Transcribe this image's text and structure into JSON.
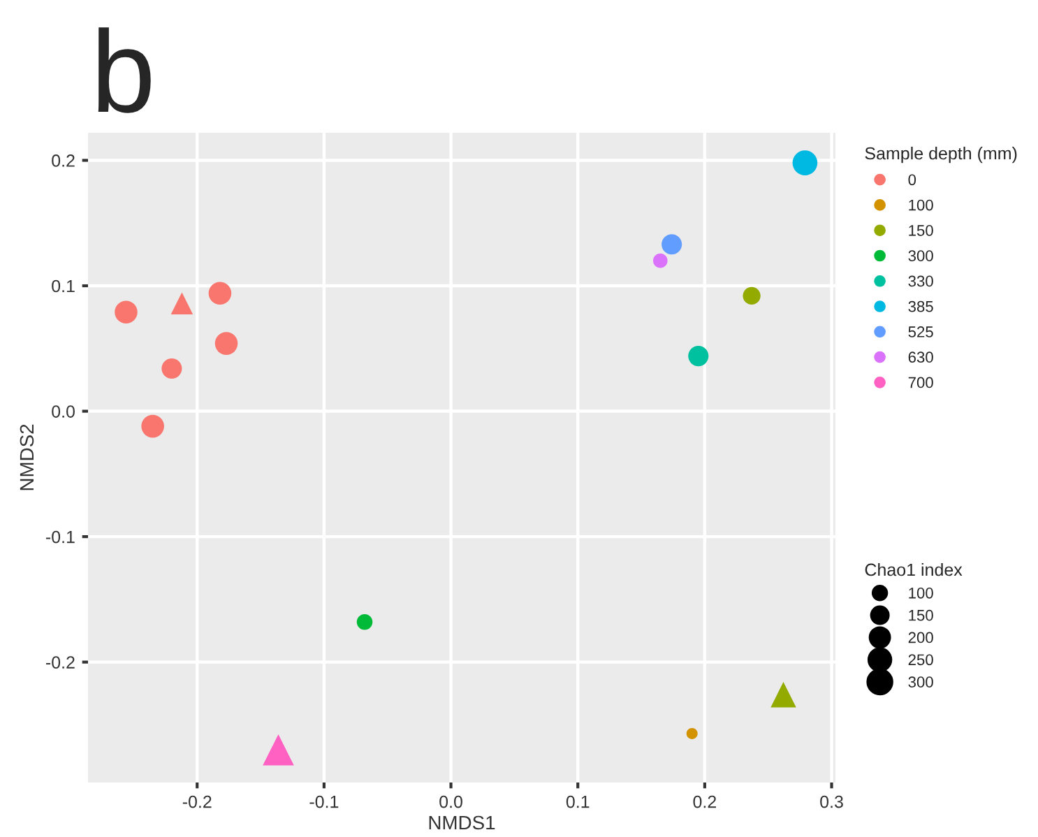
{
  "chart_data": {
    "type": "bubble",
    "title": "b",
    "xlabel": "NMDS1",
    "ylabel": "NMDS2",
    "legend_title": "Sample depth (mm)",
    "annotations": [
      "Chao1 index"
    ],
    "xlim": [
      -0.286,
      0.303
    ],
    "ylim": [
      -0.296,
      0.222
    ],
    "xticks": [
      {
        "value": -0.2,
        "label": "-0.2"
      },
      {
        "value": -0.1,
        "label": "-0.1"
      },
      {
        "value": 0.0,
        "label": "0.0"
      },
      0.1,
      0.2,
      0.3
    ],
    "yticks": [
      {
        "value": -0.2,
        "label": "-0.2"
      },
      {
        "value": -0.1,
        "label": "-0.1"
      },
      {
        "value": 0.0,
        "label": "0.0"
      },
      0.1,
      0.2
    ],
    "grid": true,
    "legend": "right",
    "size_legend": [
      100,
      150,
      200,
      250,
      300
    ],
    "series": [
      {
        "name": "0",
        "color": "#f8766d",
        "marker": "circle",
        "x": [
          -0.256,
          -0.182,
          -0.177,
          -0.22,
          -0.235
        ],
        "values": [
          0.079,
          0.094,
          0.054,
          0.034,
          -0.012
        ],
        "sizes": [
          250,
          250,
          250,
          200,
          250
        ]
      },
      {
        "color": "#f8766d",
        "marker": "triangle",
        "x": [
          -0.212
        ],
        "values": [
          0.086
        ],
        "sizes": [
          150
        ]
      },
      {
        "name": "100",
        "color": "#d39200",
        "marker": "circle",
        "x": [
          0.19
        ],
        "values": [
          -0.257
        ],
        "sizes": [
          60
        ]
      },
      {
        "name": "150",
        "color": "#93aa00",
        "marker": "circle",
        "x": [
          0.237
        ],
        "values": [
          0.092
        ],
        "sizes": [
          150
        ]
      },
      {
        "color": "#93aa00",
        "marker": "triangle",
        "x": [
          0.262
        ],
        "values": [
          -0.226
        ],
        "sizes": [
          200
        ]
      },
      {
        "name": "300",
        "color": "#00ba38",
        "marker": "circle",
        "x": [
          -0.068
        ],
        "values": [
          -0.168
        ],
        "sizes": [
          120
        ]
      },
      {
        "name": "330",
        "color": "#00c19f",
        "marker": "circle",
        "x": [
          0.195
        ],
        "values": [
          0.044
        ],
        "sizes": [
          200
        ]
      },
      {
        "name": "385",
        "color": "#00b9e3",
        "marker": "circle",
        "x": [
          0.279
        ],
        "values": [
          0.198
        ],
        "sizes": [
          300
        ]
      },
      {
        "name": "525",
        "color": "#619cff",
        "marker": "circle",
        "x": [
          0.174
        ],
        "values": [
          0.133
        ],
        "sizes": [
          200
        ]
      },
      {
        "name": "630",
        "color": "#db72fb",
        "marker": "circle",
        "x": [
          0.165
        ],
        "values": [
          0.12
        ],
        "sizes": [
          100
        ]
      },
      {
        "name": "700",
        "color": "#ff61c3",
        "marker": "triangle",
        "x": [
          -0.136
        ],
        "values": [
          -0.27
        ],
        "sizes": [
          300
        ]
      }
    ]
  }
}
